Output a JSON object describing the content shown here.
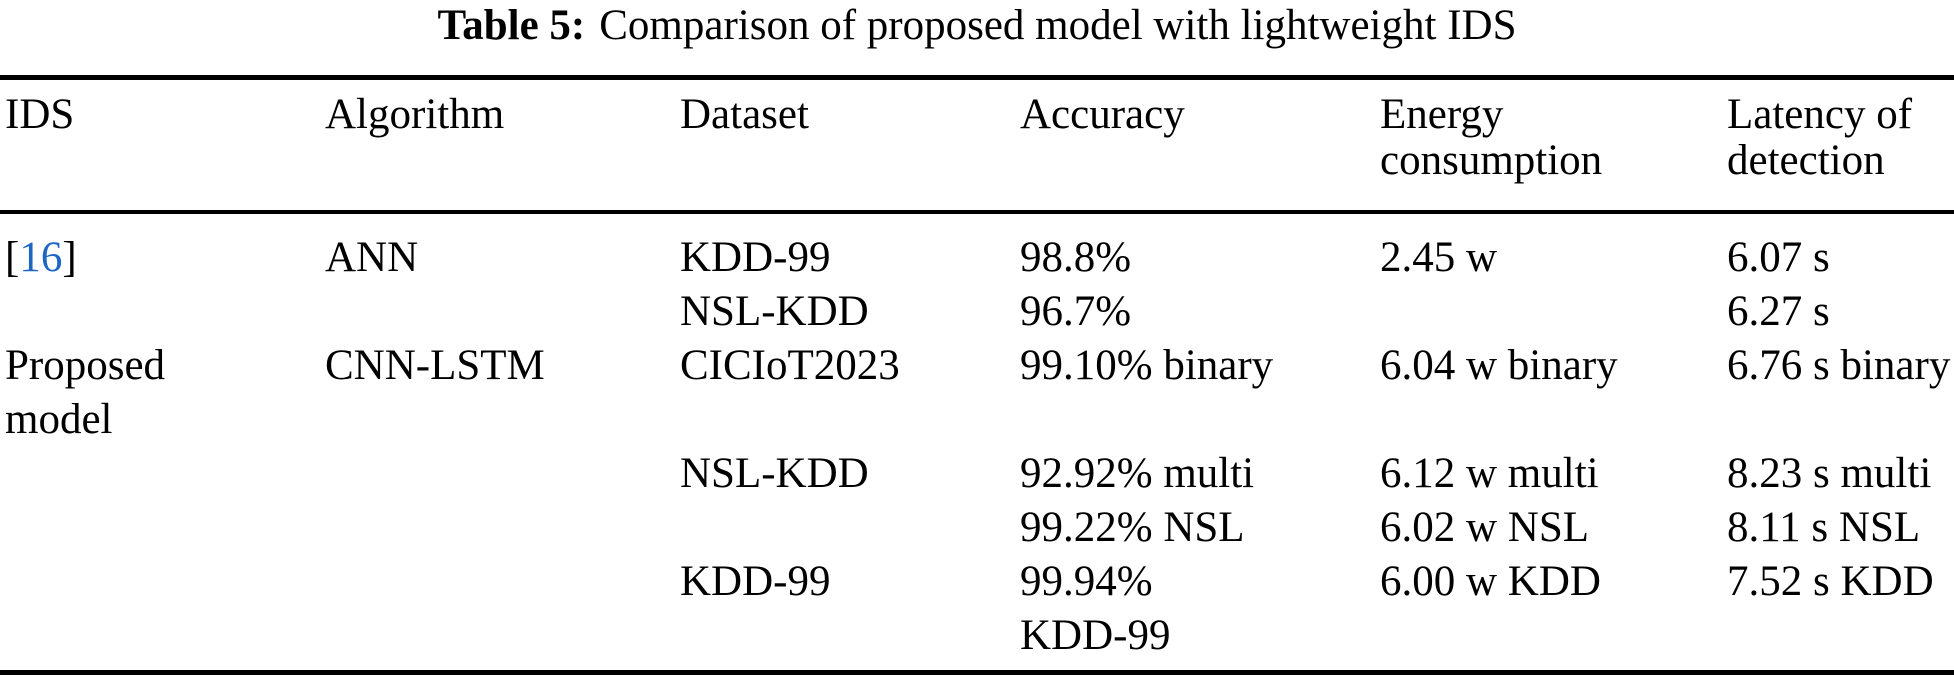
{
  "caption": {
    "label": "Table 5:",
    "text": "Comparison of proposed model with lightweight IDS"
  },
  "colors": {
    "text": "#000000",
    "background": "#ffffff",
    "rule": "#000000",
    "citation_link": "#1e66c4"
  },
  "citation": {
    "number": "16",
    "open_bracket": "[",
    "close_bracket": "]"
  },
  "table": {
    "columns": [
      {
        "name": "ids",
        "label": "IDS",
        "lines": [
          "IDS"
        ]
      },
      {
        "name": "algorithm",
        "label": "Algorithm",
        "lines": [
          "Algorithm"
        ]
      },
      {
        "name": "dataset",
        "label": "Dataset",
        "lines": [
          "Dataset"
        ]
      },
      {
        "name": "accuracy",
        "label": "Accuracy",
        "lines": [
          "Accuracy"
        ]
      },
      {
        "name": "energy",
        "label": "Energy consumption",
        "lines": [
          "Energy",
          "consumption"
        ]
      },
      {
        "name": "latency",
        "label": "Latency of detection",
        "lines": [
          "Latency of",
          "detection"
        ]
      }
    ],
    "lines": [
      [
        {
          "citation": "16"
        },
        "ANN",
        "KDD-99",
        "98.8%",
        "2.45 w",
        "6.07 s"
      ],
      [
        "",
        "",
        "NSL-KDD",
        "96.7%",
        "",
        "6.27 s"
      ],
      [
        "Proposed",
        "CNN-LSTM",
        "CICIoT2023",
        "99.10% binary",
        "6.04 w binary",
        "6.76 s binary"
      ],
      [
        "model",
        "",
        "",
        "",
        "",
        ""
      ],
      [
        "",
        "",
        "NSL-KDD",
        "92.92% multi",
        "6.12 w multi",
        "8.23 s multi"
      ],
      [
        "",
        "",
        "",
        "99.22% NSL",
        "6.02 w NSL",
        "8.11 s NSL"
      ],
      [
        "",
        "",
        "KDD-99",
        "99.94%",
        "6.00 w KDD",
        "7.52 s KDD"
      ],
      [
        "",
        "",
        "",
        "KDD-99",
        "",
        ""
      ]
    ],
    "rows_logical": [
      {
        "ids": "[16]",
        "algorithm": "ANN",
        "dataset": [
          "KDD-99",
          "NSL-KDD"
        ],
        "accuracy": [
          "98.8%",
          "96.7%"
        ],
        "energy_consumption": [
          "2.45 w"
        ],
        "latency_of_detection": [
          "6.07 s",
          "6.27 s"
        ]
      },
      {
        "ids": "Proposed model",
        "algorithm": "CNN-LSTM",
        "dataset": [
          "CICIoT2023",
          "NSL-KDD",
          "KDD-99"
        ],
        "accuracy": [
          "99.10% binary",
          "92.92% multi",
          "99.22% NSL",
          "99.94% KDD-99"
        ],
        "energy_consumption": [
          "6.04 w binary",
          "6.12 w multi",
          "6.02 w NSL",
          "6.00 w KDD"
        ],
        "latency_of_detection": [
          "6.76 s binary",
          "8.23 s multi",
          "8.11 s NSL",
          "7.52 s KDD"
        ]
      }
    ]
  }
}
